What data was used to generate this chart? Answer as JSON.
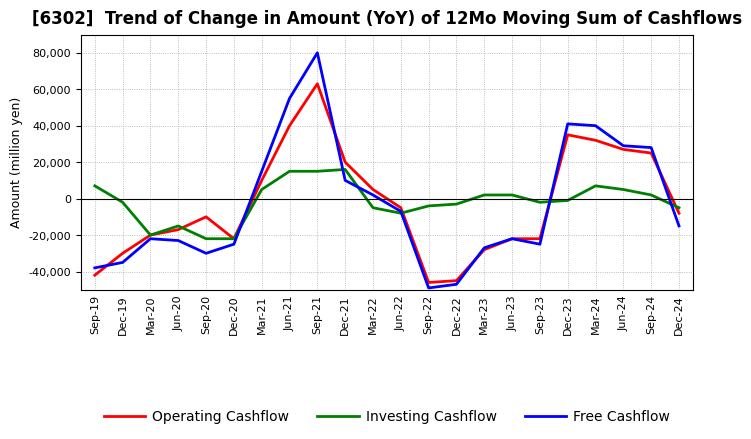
{
  "title": "[6302]  Trend of Change in Amount (YoY) of 12Mo Moving Sum of Cashflows",
  "ylabel": "Amount (million yen)",
  "x_labels": [
    "Sep-19",
    "Dec-19",
    "Mar-20",
    "Jun-20",
    "Sep-20",
    "Dec-20",
    "Mar-21",
    "Jun-21",
    "Sep-21",
    "Dec-21",
    "Mar-22",
    "Jun-22",
    "Sep-22",
    "Dec-22",
    "Mar-23",
    "Jun-23",
    "Sep-23",
    "Dec-23",
    "Mar-24",
    "Jun-24",
    "Sep-24",
    "Dec-24"
  ],
  "operating": [
    -42000,
    -30000,
    -20000,
    -17000,
    -10000,
    -22000,
    10000,
    40000,
    63000,
    20000,
    5000,
    -5000,
    -46000,
    -45000,
    -28000,
    -22000,
    -22000,
    35000,
    32000,
    27000,
    25000,
    -8000
  ],
  "investing": [
    7000,
    -2000,
    -20000,
    -15000,
    -22000,
    -22000,
    5000,
    15000,
    15000,
    16000,
    -5000,
    -8000,
    -4000,
    -3000,
    2000,
    2000,
    -2000,
    -1000,
    7000,
    5000,
    2000,
    -5000
  ],
  "free": [
    -38000,
    -35000,
    -22000,
    -23000,
    -30000,
    -25000,
    15000,
    55000,
    80000,
    10000,
    2000,
    -7000,
    -49000,
    -47000,
    -27000,
    -22000,
    -25000,
    41000,
    40000,
    29000,
    28000,
    -15000
  ],
  "operating_color": "#ff0000",
  "investing_color": "#008000",
  "free_color": "#0000ff",
  "background_color": "#ffffff",
  "grid_color": "#aaaaaa",
  "ylim": [
    -50000,
    90000
  ],
  "yticks": [
    -40000,
    -20000,
    0,
    20000,
    40000,
    60000,
    80000
  ],
  "line_width": 2.0,
  "title_fontsize": 12,
  "axis_fontsize": 9,
  "tick_fontsize": 8
}
